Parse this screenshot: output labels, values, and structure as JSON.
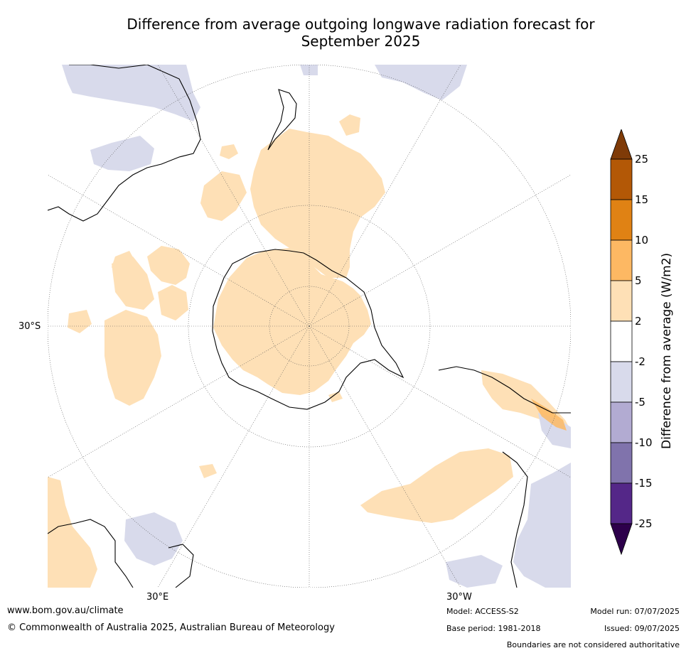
{
  "title_line1": "Difference from average outgoing longwave radiation forecast for",
  "title_line2": "September 2025",
  "map": {
    "projection": "south-polar-stereographic",
    "lat_label": "30°S",
    "lon_labels": {
      "left": "30°E",
      "right": "30°W"
    }
  },
  "colorbar": {
    "title": "Difference from average (W/m2)",
    "ticks": [
      "25",
      "15",
      "10",
      "5",
      "2",
      "-2",
      "-5",
      "-10",
      "-15",
      "-25"
    ],
    "colors": {
      "over": "#7f3b08",
      "15_25": "#b35806",
      "10_15": "#e08214",
      "5_10": "#fdb863",
      "2_5": "#fee0b6",
      "m2_2": "#ffffff",
      "m5_m2": "#d8daeb",
      "m10_m5": "#b2abd2",
      "m15_m10": "#8073ac",
      "m25_m15": "#542788",
      "under": "#2d004b"
    }
  },
  "footer": {
    "url": "www.bom.gov.au/climate",
    "copyright": "© Commonwealth of Australia 2025, Australian Bureau of Meteorology",
    "model": "Model: ACCESS-S2",
    "base_period": "Base period: 1981-2018",
    "model_run": "Model run: 07/07/2025",
    "issued": "Issued: 09/07/2025",
    "disclaimer": "Boundaries are not considered authoritative"
  }
}
